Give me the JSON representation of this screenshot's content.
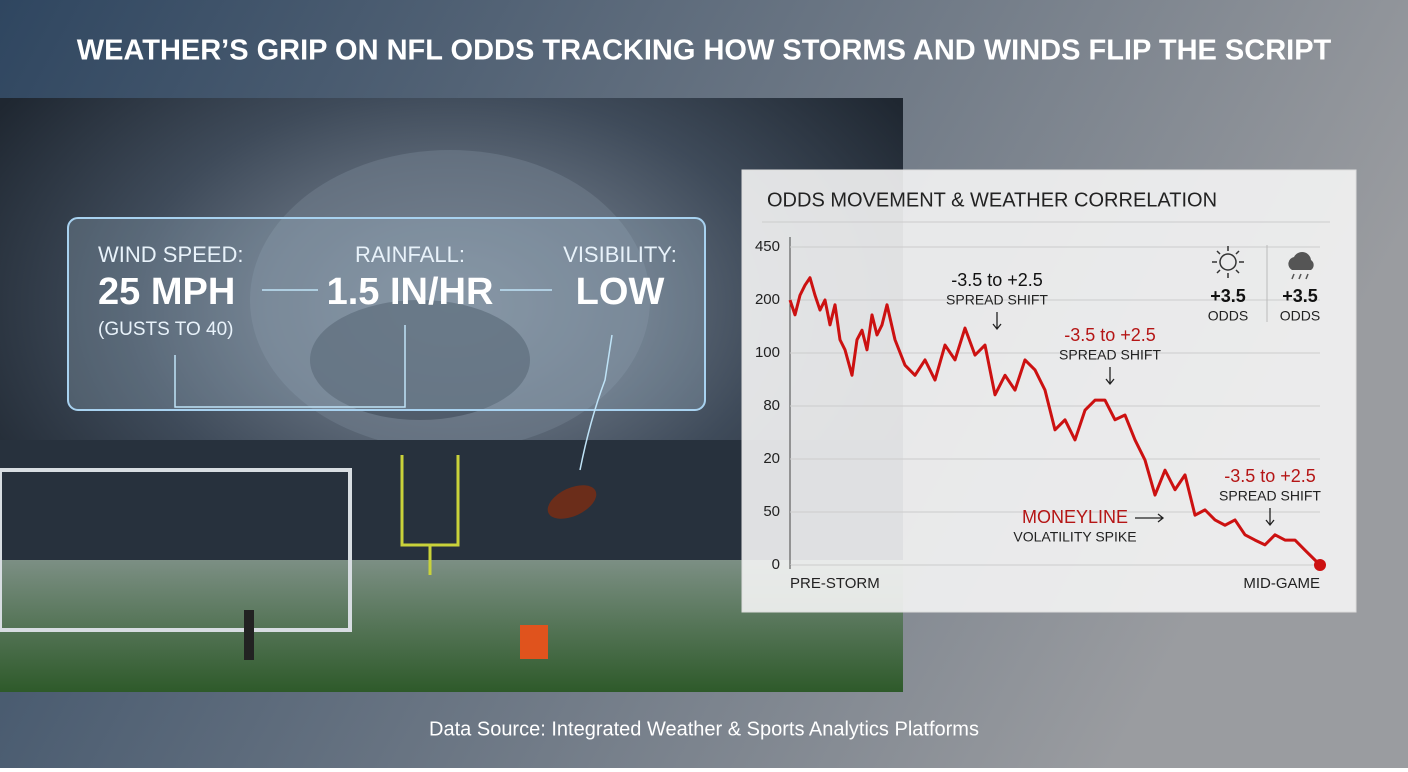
{
  "title": "WEATHER’S GRIP ON NFL ODDS TRACKING HOW STORMS AND WINDS FLIP THE SCRIPT",
  "stats": [
    {
      "label": "WIND SPEED:",
      "value": "25 MPH",
      "note": "(GUSTS TO 40)"
    },
    {
      "label": "RAINFALL:",
      "value": "1.5 IN/HR"
    },
    {
      "label": "VISIBILITY:",
      "value": "LOW"
    }
  ],
  "chart_data": {
    "type": "line",
    "title": "ODDS MOVEMENT & WEATHER CORRELATION",
    "x": [
      0,
      5,
      10,
      15,
      20,
      25,
      30,
      35,
      40,
      45,
      50,
      55,
      62,
      67,
      72,
      77,
      82,
      87,
      92,
      97,
      105,
      115,
      125,
      135,
      145,
      155,
      165,
      175,
      185,
      195,
      205,
      215,
      225,
      235,
      245,
      255,
      265,
      275,
      285,
      295,
      305,
      315,
      325,
      335,
      345,
      355,
      365,
      375,
      385,
      395,
      405,
      415,
      425,
      435,
      445,
      455,
      465,
      475,
      485,
      495,
      505,
      515,
      530
    ],
    "series": [
      {
        "color": "#cc1111",
        "values": [
          5.0,
          4.72,
          5.09,
          5.28,
          5.42,
          5.09,
          4.81,
          5.0,
          4.53,
          4.91,
          4.25,
          4.06,
          3.58,
          4.25,
          4.43,
          4.06,
          4.72,
          4.34,
          4.53,
          4.91,
          4.25,
          3.77,
          3.58,
          3.87,
          3.49,
          4.15,
          3.87,
          4.47,
          3.96,
          4.15,
          3.21,
          3.58,
          3.3,
          3.87,
          3.68,
          3.3,
          2.55,
          2.74,
          2.36,
          2.92,
          3.11,
          3.11,
          2.74,
          2.83,
          2.36,
          1.98,
          1.32,
          1.79,
          1.42,
          1.7,
          0.94,
          1.04,
          0.85,
          0.75,
          0.85,
          0.57,
          0.47,
          0.38,
          0.57,
          0.47,
          0.47,
          0.28,
          0
        ]
      }
    ],
    "xlim": [
      0,
      530
    ],
    "xticks": [
      {
        "value": 0,
        "label": "PRE-STORM"
      },
      {
        "value": 530,
        "label": "MID-GAME"
      }
    ],
    "ylim": [
      0,
      6
    ],
    "yticks": [
      {
        "value": 6,
        "label": "450"
      },
      {
        "value": 5,
        "label": "200"
      },
      {
        "value": 4,
        "label": "100"
      },
      {
        "value": 3,
        "label": "80"
      },
      {
        "value": 2,
        "label": "20"
      },
      {
        "value": 1,
        "label": "50"
      },
      {
        "value": 0,
        "label": "0"
      }
    ],
    "grid": true,
    "annotations": [
      {
        "text": "-3.5 to +2.5",
        "subtext": "SPREAD SHIFT"
      },
      {
        "text": "-3.5 to +2.5",
        "subtext": "SPREAD SHIFT"
      },
      {
        "text": "-3.5 to +2.5",
        "subtext": "SPREAD SHIFT"
      },
      {
        "text": "MONEYLINE",
        "subtext": "VOLATILITY SPIKE"
      }
    ],
    "weather_odds": [
      {
        "value": "+3.5",
        "label": "ODDS"
      },
      {
        "value": "+3.5",
        "label": "ODDS"
      }
    ]
  },
  "source": "Data Source: Integrated Weather & Sports Analytics Platforms"
}
